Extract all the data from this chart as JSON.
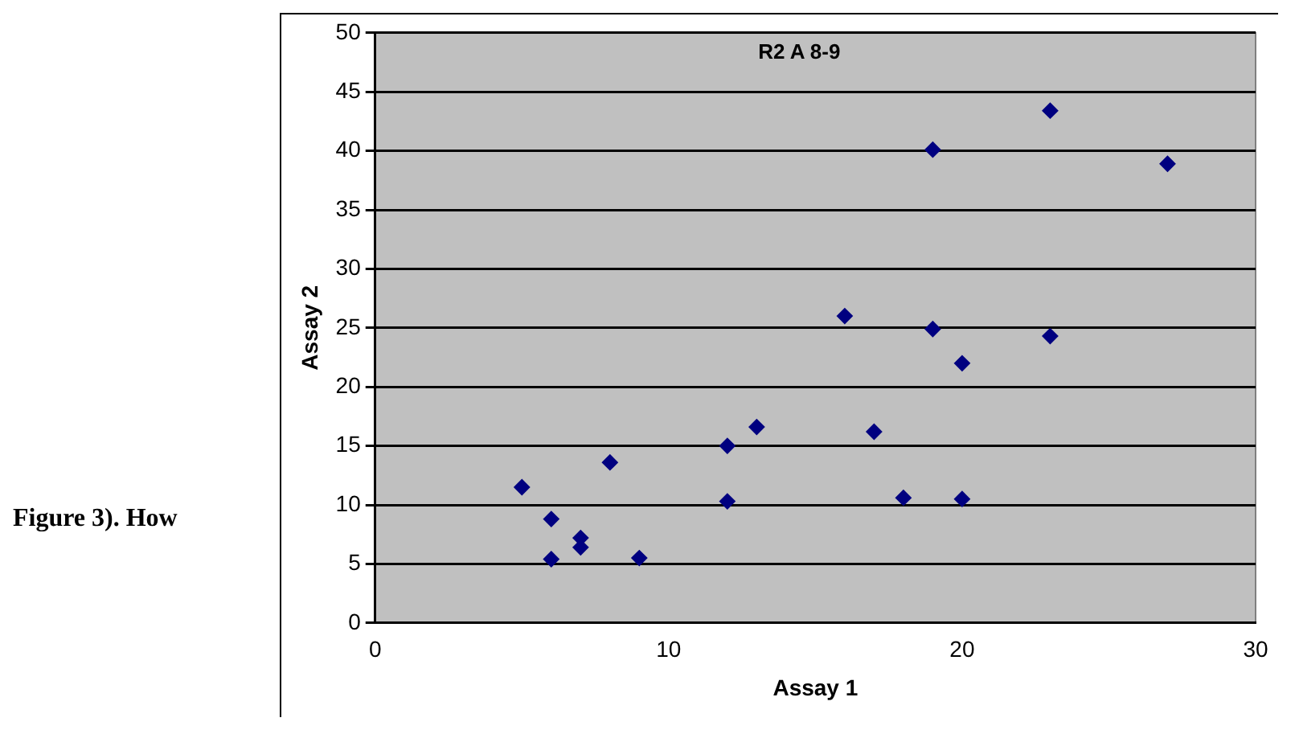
{
  "chart_data": {
    "type": "scatter",
    "title": "R2 A 8-9",
    "xlabel": "Assay 1",
    "ylabel": "Assay 2",
    "annotations": [
      "Figure 3). How"
    ],
    "x": [
      5,
      6,
      6,
      7,
      7,
      8,
      9,
      12,
      12,
      13,
      16,
      17,
      18,
      19,
      19,
      20,
      20,
      23,
      23,
      27
    ],
    "series": [
      {
        "color": "#000080",
        "values": [
          11.5,
          8.8,
          5.4,
          7.2,
          6.4,
          13.6,
          5.5,
          15.0,
          10.3,
          16.6,
          26.0,
          16.2,
          10.6,
          24.9,
          40.1,
          22.0,
          10.5,
          43.4,
          24.3,
          38.9
        ]
      }
    ],
    "xlim": [
      0,
      30
    ],
    "xticks": [
      0,
      10,
      20,
      30
    ],
    "ylim": [
      0,
      50
    ],
    "yticks": [
      0,
      5,
      10,
      15,
      20,
      25,
      30,
      35,
      40,
      45,
      50
    ],
    "grid": "y",
    "legend": false,
    "marker": "diamond"
  }
}
